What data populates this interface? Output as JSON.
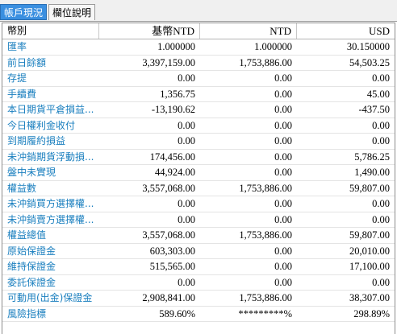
{
  "tabs": [
    {
      "label": "帳戶現況",
      "active": true
    },
    {
      "label": "欄位說明",
      "active": false
    }
  ],
  "table": {
    "columns": [
      "幣別",
      "基幣NTD",
      "NTD",
      "USD"
    ],
    "rows": [
      [
        "匯率",
        "1.000000",
        "1.000000",
        "30.150000"
      ],
      [
        "前日餘額",
        "3,397,159.00",
        "1,753,886.00",
        "54,503.25"
      ],
      [
        "存提",
        "0.00",
        "0.00",
        "0.00"
      ],
      [
        "手續費",
        "1,356.75",
        "0.00",
        "45.00"
      ],
      [
        "本日期貨平倉損益...",
        "-13,190.62",
        "0.00",
        "-437.50"
      ],
      [
        "今日權利金收付",
        "0.00",
        "0.00",
        "0.00"
      ],
      [
        "到期履約損益",
        "0.00",
        "0.00",
        "0.00"
      ],
      [
        "未沖銷期貨浮動損...",
        "174,456.00",
        "0.00",
        "5,786.25"
      ],
      [
        "盤中未實現",
        "44,924.00",
        "0.00",
        "1,490.00"
      ],
      [
        "權益數",
        "3,557,068.00",
        "1,753,886.00",
        "59,807.00"
      ],
      [
        "未沖銷買方選擇權...",
        "0.00",
        "0.00",
        "0.00"
      ],
      [
        "未沖銷賣方選擇權...",
        "0.00",
        "0.00",
        "0.00"
      ],
      [
        "權益總值",
        "3,557,068.00",
        "1,753,886.00",
        "59,807.00"
      ],
      [
        "原始保證金",
        "603,303.00",
        "0.00",
        "20,010.00"
      ],
      [
        "維持保證金",
        "515,565.00",
        "0.00",
        "17,100.00"
      ],
      [
        "委託保證金",
        "0.00",
        "0.00",
        "0.00"
      ],
      [
        "可動用(出金)保證金",
        "2,908,841.00",
        "1,753,886.00",
        "38,307.00"
      ],
      [
        "風險指標",
        "589.60%",
        "*********%",
        "298.89%"
      ]
    ]
  },
  "colors": {
    "active_tab_bg": "#3a8fe0",
    "row_label_color": "#1a7fbf"
  }
}
